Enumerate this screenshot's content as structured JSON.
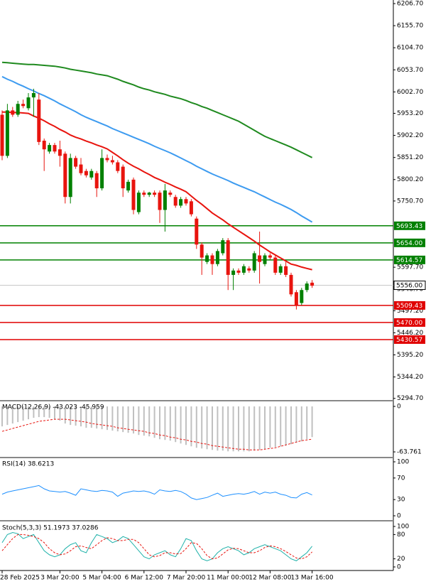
{
  "chart_data": [
    {
      "type": "candlestick",
      "categories": [
        "28 Feb 2025",
        null,
        null,
        null,
        null,
        null,
        null,
        null,
        null,
        null,
        null,
        "3 Mar 20:00",
        null,
        null,
        null,
        null,
        null,
        null,
        null,
        "5 Mar 04:00",
        null,
        null,
        null,
        null,
        null,
        null,
        null,
        "6 Mar 12:00",
        null,
        null,
        null,
        null,
        null,
        null,
        null,
        "7 Mar 20:00",
        null,
        null,
        null,
        null,
        null,
        null,
        null,
        "11 Mar 00:00",
        null,
        null,
        null,
        null,
        null,
        null,
        null,
        "12 Mar 08:00",
        null,
        null,
        null,
        null,
        null,
        null,
        null,
        "13 Mar 16:00"
      ],
      "open": [
        5950,
        5855,
        5960,
        5950,
        5975,
        5965,
        5990,
        5985,
        5890,
        5865,
        5880,
        5870,
        5860,
        5760,
        5850,
        5835,
        5820,
        5805,
        5815,
        5780,
        5850,
        5845,
        5840,
        5830,
        5775,
        5800,
        5725,
        5770,
        5765,
        5770,
        5770,
        5730,
        5770,
        5760,
        5740,
        5755,
        5750,
        5710,
        5650,
        5610,
        5625,
        5605,
        5630,
        5660,
        5580,
        5590,
        5585,
        5595,
        5590,
        5625,
        5605,
        5625,
        5620,
        5585,
        5600,
        5580,
        5540,
        5515,
        5545,
        5562
      ],
      "high": [
        5960,
        5975,
        5968,
        5982,
        5985,
        6000,
        6010,
        6000,
        5895,
        5885,
        5885,
        5890,
        5865,
        5860,
        5855,
        5850,
        5825,
        5825,
        5820,
        5870,
        5858,
        5855,
        5845,
        5835,
        5800,
        5805,
        5775,
        5775,
        5772,
        5775,
        5775,
        5790,
        5775,
        5765,
        5760,
        5760,
        5755,
        5715,
        5655,
        5630,
        5630,
        5640,
        5665,
        5665,
        5595,
        5595,
        5605,
        5600,
        5635,
        5680,
        5630,
        5630,
        5625,
        5605,
        5610,
        5585,
        5545,
        5550,
        5565,
        5568
      ],
      "low": [
        5845,
        5850,
        5945,
        5945,
        5965,
        5960,
        5945,
        5880,
        5820,
        5860,
        5860,
        5830,
        5745,
        5745,
        5825,
        5810,
        5805,
        5800,
        5760,
        5775,
        5840,
        5835,
        5815,
        5760,
        5770,
        5720,
        5720,
        5760,
        5760,
        5760,
        5700,
        5680,
        5760,
        5735,
        5735,
        5740,
        5715,
        5640,
        5580,
        5605,
        5580,
        5600,
        5625,
        5545,
        5545,
        5580,
        5580,
        5585,
        5585,
        5560,
        5600,
        5615,
        5580,
        5580,
        5575,
        5530,
        5500,
        5510,
        5540,
        5550
      ],
      "close": [
        5855,
        5960,
        5950,
        5975,
        5970,
        5990,
        6000,
        5887,
        5870,
        5880,
        5865,
        5855,
        5760,
        5850,
        5830,
        5815,
        5810,
        5820,
        5780,
        5850,
        5845,
        5840,
        5820,
        5780,
        5795,
        5730,
        5770,
        5765,
        5770,
        5765,
        5730,
        5775,
        5765,
        5740,
        5755,
        5745,
        5720,
        5650,
        5620,
        5625,
        5605,
        5635,
        5660,
        5580,
        5590,
        5585,
        5600,
        5590,
        5630,
        5610,
        5625,
        5620,
        5585,
        5600,
        5580,
        5535,
        5510,
        5545,
        5560,
        5555
      ],
      "up_color": "#008000",
      "down_color": "#e8140e",
      "lines": [
        {
          "color": "#e8140e",
          "values": [
            5956,
            5956,
            5955,
            5955,
            5954,
            5953,
            5947,
            5942,
            5936,
            5929,
            5923,
            5916,
            5910,
            5903,
            5898,
            5894,
            5889,
            5885,
            5880,
            5876,
            5871,
            5863,
            5855,
            5846,
            5838,
            5831,
            5825,
            5818,
            5812,
            5805,
            5800,
            5794,
            5789,
            5783,
            5778,
            5772,
            5762,
            5752,
            5743,
            5733,
            5723,
            5715,
            5707,
            5698,
            5690,
            5682,
            5674,
            5666,
            5658,
            5649,
            5641,
            5633,
            5626,
            5619,
            5612,
            5605,
            5602,
            5598,
            5595,
            5592
          ]
        },
        {
          "color": "#3d9bf0",
          "values": [
            6038,
            6032,
            6027,
            6021,
            6016,
            6010,
            6005,
            5999,
            5994,
            5988,
            5982,
            5975,
            5969,
            5963,
            5957,
            5950,
            5944,
            5939,
            5934,
            5929,
            5924,
            5918,
            5913,
            5908,
            5903,
            5898,
            5893,
            5888,
            5883,
            5877,
            5872,
            5867,
            5862,
            5856,
            5850,
            5844,
            5838,
            5831,
            5825,
            5819,
            5813,
            5808,
            5803,
            5798,
            5792,
            5787,
            5782,
            5777,
            5772,
            5766,
            5760,
            5754,
            5748,
            5743,
            5737,
            5731,
            5724,
            5716,
            5709,
            5702
          ]
        },
        {
          "color": "#1f8a1f",
          "values": [
            6071,
            6070,
            6069,
            6068,
            6067,
            6066,
            6066,
            6065,
            6064,
            6063,
            6062,
            6060,
            6058,
            6055,
            6053,
            6051,
            6049,
            6047,
            6044,
            6042,
            6040,
            6036,
            6032,
            6027,
            6023,
            6019,
            6014,
            6010,
            6007,
            6003,
            6000,
            5997,
            5993,
            5990,
            5987,
            5983,
            5978,
            5974,
            5969,
            5965,
            5960,
            5955,
            5950,
            5945,
            5940,
            5935,
            5928,
            5921,
            5914,
            5907,
            5900,
            5895,
            5890,
            5885,
            5880,
            5875,
            5869,
            5863,
            5857,
            5851
          ]
        }
      ],
      "levels": [
        {
          "value": 5693.43,
          "color": "#008000"
        },
        {
          "value": 5654,
          "label": "5654.00",
          "color": "#008000"
        },
        {
          "value": 5614.57,
          "color": "#008000"
        },
        {
          "value": 5509.43,
          "color": "#e00000"
        },
        {
          "value": 5470,
          "label": "5470.00",
          "color": "#e00000"
        },
        {
          "value": 5430.57,
          "color": "#e00000"
        }
      ],
      "last_price": {
        "value": 5556,
        "label": "5556.00"
      },
      "ylim": [
        5291,
        6215
      ],
      "yticks": [
        {
          "value": 6206.7,
          "label": "6206.70"
        },
        {
          "value": 6155.7,
          "label": "6155.70"
        },
        {
          "value": 6104.7,
          "label": "6104.70"
        },
        {
          "value": 6053.7,
          "label": "6053.70"
        },
        {
          "value": 6002.7,
          "label": "6002.70"
        },
        {
          "value": 5953.2,
          "label": "5953.20"
        },
        {
          "value": 5902.2,
          "label": "5902.20"
        },
        {
          "value": 5851.2,
          "label": "5851.20"
        },
        {
          "value": 5800.2,
          "label": "5800.20"
        },
        {
          "value": 5750.7,
          "label": "5750.70"
        },
        {
          "value": 5597.7,
          "label": "5597.70"
        },
        {
          "value": 5546.7,
          "label": "5546.70"
        },
        {
          "value": 5497.2,
          "label": "5497.20"
        },
        {
          "value": 5446.2,
          "label": "5446.20"
        },
        {
          "value": 5395.2,
          "label": "5395.20"
        },
        {
          "value": 5344.2,
          "label": "5344.20"
        },
        {
          "value": 5294.7,
          "label": "5294.70"
        }
      ]
    },
    {
      "type": "macd",
      "title": "MACD(12,26,9) -43.023 -45.959",
      "values": [
        -28,
        -26,
        -24,
        -22,
        -20,
        -18,
        -16,
        -15,
        -15,
        -16,
        -18,
        -20,
        -24,
        -26,
        -27,
        -28,
        -30,
        -30,
        -31,
        -32,
        -33,
        -34,
        -35,
        -36,
        -37,
        -38,
        -40,
        -41,
        -42,
        -44,
        -46,
        -47,
        -48,
        -50,
        -52,
        -54,
        -56,
        -58,
        -59,
        -60,
        -61,
        -62,
        -62,
        -63,
        -63,
        -63,
        -63,
        -63,
        -62,
        -61,
        -60,
        -58,
        -57,
        -56,
        -55,
        -53,
        -51,
        -49,
        -46,
        -43.023
      ],
      "signal": [
        -35,
        -33,
        -31,
        -29,
        -27,
        -25,
        -23,
        -21,
        -20,
        -19,
        -18,
        -18,
        -18,
        -19,
        -20,
        -21,
        -22,
        -24,
        -25,
        -26,
        -27,
        -28,
        -30,
        -31,
        -32,
        -33,
        -34,
        -35,
        -37,
        -38,
        -40,
        -41,
        -43,
        -44,
        -46,
        -47,
        -49,
        -50,
        -52,
        -53,
        -55,
        -56,
        -57,
        -58,
        -59,
        -60,
        -60,
        -61,
        -61,
        -61,
        -60,
        -59,
        -58,
        -56,
        -54,
        -52,
        -50,
        -48,
        -47,
        -45.959
      ],
      "color": "#c0c0c0",
      "signal_color": "#e8140e",
      "ylim": [
        -70.7,
        7
      ],
      "yticks": [
        0,
        -63.761
      ]
    },
    {
      "type": "line",
      "title": "RSI(14) 38.6213",
      "series": [
        {
          "color": "#1e90ff",
          "values": [
            40,
            44,
            46,
            48,
            50,
            52,
            54,
            56,
            50,
            46,
            45,
            44,
            45,
            42,
            38,
            50,
            48,
            46,
            45,
            47,
            46,
            44,
            36,
            42,
            44,
            46,
            45,
            46,
            44,
            40,
            48,
            46,
            45,
            47,
            45,
            40,
            33,
            30,
            32,
            34,
            38,
            42,
            36,
            38,
            40,
            41,
            40,
            42,
            45,
            40,
            44,
            42,
            44,
            40,
            38,
            34,
            33,
            40,
            43,
            38.6213
          ]
        }
      ],
      "ylim": [
        -7.9,
        106.6
      ],
      "yticks": [
        0,
        30,
        70,
        100
      ]
    },
    {
      "type": "stochastic",
      "title": "Stoch(5,3,3) 51.1973 37.0286",
      "series": [
        {
          "color": "#20b2aa",
          "values": [
            60,
            80,
            85,
            82,
            70,
            75,
            80,
            60,
            40,
            30,
            25,
            30,
            45,
            55,
            60,
            40,
            35,
            60,
            80,
            75,
            70,
            60,
            65,
            75,
            70,
            55,
            40,
            25,
            20,
            30,
            35,
            40,
            30,
            25,
            45,
            70,
            65,
            40,
            20,
            15,
            20,
            35,
            45,
            50,
            45,
            40,
            30,
            35,
            45,
            50,
            55,
            50,
            45,
            40,
            30,
            20,
            15,
            25,
            35,
            51.1973
          ]
        },
        {
          "color": "#e8140e",
          "dashed": true,
          "values": [
            40,
            55,
            70,
            80,
            80,
            78,
            75,
            70,
            60,
            45,
            35,
            30,
            32,
            40,
            50,
            52,
            48,
            45,
            55,
            65,
            72,
            70,
            65,
            65,
            68,
            68,
            60,
            45,
            30,
            25,
            28,
            35,
            35,
            32,
            33,
            45,
            60,
            58,
            45,
            28,
            20,
            22,
            32,
            42,
            46,
            45,
            40,
            35,
            35,
            40,
            48,
            52,
            50,
            45,
            38,
            30,
            22,
            20,
            25,
            37.0286
          ]
        }
      ],
      "ylim": [
        -8.8,
        110.5
      ],
      "yticks": [
        0,
        20,
        80,
        100
      ]
    }
  ]
}
